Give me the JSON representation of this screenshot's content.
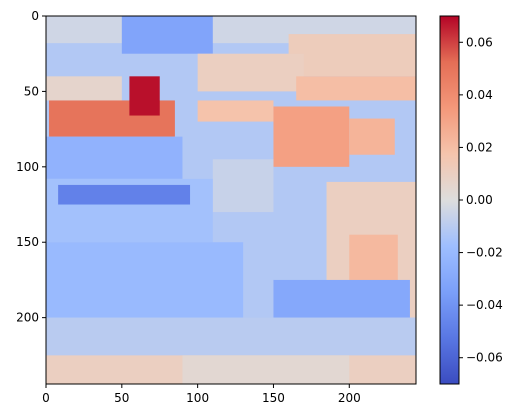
{
  "chart_data": {
    "type": "heatmap",
    "title": "",
    "xlabel": "",
    "ylabel": "",
    "colormap": "coolwarm",
    "grid": false,
    "xlim": [
      0,
      244
    ],
    "ylim": [
      244,
      0
    ],
    "x_ticks": [
      0,
      50,
      100,
      150,
      200
    ],
    "y_ticks": [
      0,
      50,
      100,
      150,
      200
    ],
    "colorbar": {
      "range": [
        -0.07,
        0.07
      ],
      "ticks": [
        0.06,
        0.04,
        0.02,
        0.0,
        -0.02,
        -0.04,
        -0.06
      ],
      "tick_labels": [
        "0.06",
        "0.04",
        "0.02",
        "0.00",
        "−0.02",
        "−0.04",
        "−0.06"
      ]
    },
    "regions": [
      {
        "x0": 0,
        "x1": 244,
        "y0": 0,
        "y1": 244,
        "value": -0.012
      },
      {
        "x0": 0,
        "x1": 244,
        "y0": 0,
        "y1": 18,
        "value": -0.004
      },
      {
        "x0": 50,
        "x1": 110,
        "y0": 0,
        "y1": 25,
        "value": -0.032
      },
      {
        "x0": 160,
        "x1": 244,
        "y0": 12,
        "y1": 40,
        "value": 0.012
      },
      {
        "x0": 100,
        "x1": 170,
        "y0": 25,
        "y1": 50,
        "value": 0.01
      },
      {
        "x0": 0,
        "x1": 50,
        "y0": 40,
        "y1": 56,
        "value": 0.006
      },
      {
        "x0": 165,
        "x1": 244,
        "y0": 40,
        "y1": 56,
        "value": 0.02
      },
      {
        "x0": 2,
        "x1": 85,
        "y0": 56,
        "y1": 80,
        "value": 0.05
      },
      {
        "x0": 55,
        "x1": 75,
        "y0": 40,
        "y1": 66,
        "value": 0.068
      },
      {
        "x0": 100,
        "x1": 150,
        "y0": 56,
        "y1": 70,
        "value": 0.018
      },
      {
        "x0": 150,
        "x1": 200,
        "y0": 60,
        "y1": 100,
        "value": 0.032
      },
      {
        "x0": 200,
        "x1": 230,
        "y0": 68,
        "y1": 92,
        "value": 0.024
      },
      {
        "x0": 0,
        "x1": 90,
        "y0": 80,
        "y1": 108,
        "value": -0.024
      },
      {
        "x0": 110,
        "x1": 150,
        "y0": 95,
        "y1": 130,
        "value": -0.006
      },
      {
        "x0": 0,
        "x1": 110,
        "y0": 108,
        "y1": 150,
        "value": -0.016
      },
      {
        "x0": 8,
        "x1": 95,
        "y0": 112,
        "y1": 125,
        "value": -0.048
      },
      {
        "x0": 185,
        "x1": 244,
        "y0": 110,
        "y1": 200,
        "value": 0.01
      },
      {
        "x0": 200,
        "x1": 232,
        "y0": 145,
        "y1": 182,
        "value": 0.022
      },
      {
        "x0": 0,
        "x1": 130,
        "y0": 150,
        "y1": 200,
        "value": -0.02
      },
      {
        "x0": 150,
        "x1": 240,
        "y0": 175,
        "y1": 200,
        "value": -0.03
      },
      {
        "x0": 0,
        "x1": 244,
        "y0": 200,
        "y1": 225,
        "value": -0.01
      },
      {
        "x0": 0,
        "x1": 244,
        "y0": 225,
        "y1": 244,
        "value": 0.01
      },
      {
        "x0": 90,
        "x1": 200,
        "y0": 225,
        "y1": 244,
        "value": 0.004
      }
    ]
  }
}
